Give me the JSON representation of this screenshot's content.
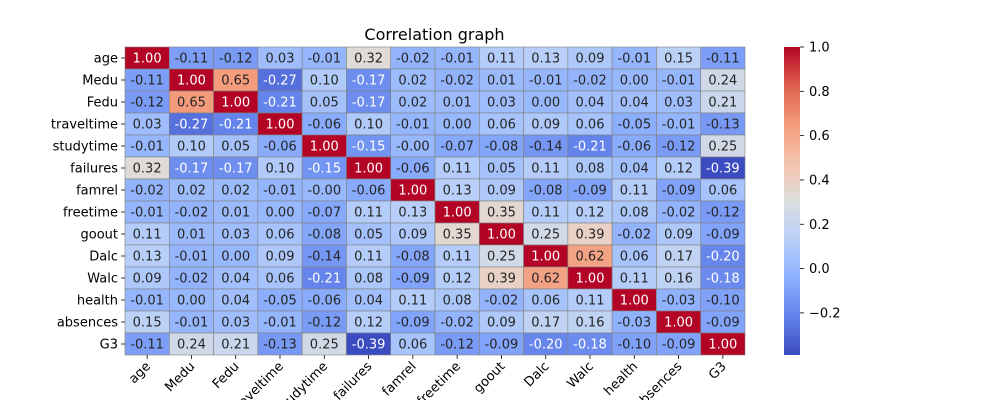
{
  "chart_data": {
    "type": "heatmap",
    "title": "Correlation graph",
    "rows": [
      "age",
      "Medu",
      "Fedu",
      "traveltime",
      "studytime",
      "failures",
      "famrel",
      "freetime",
      "goout",
      "Dalc",
      "Walc",
      "health",
      "absences",
      "G3"
    ],
    "columns": [
      "age",
      "Medu",
      "Fedu",
      "traveltime",
      "studytime",
      "failures",
      "famrel",
      "freetime",
      "goout",
      "Dalc",
      "Walc",
      "health",
      "absences",
      "G3"
    ],
    "values": [
      [
        1.0,
        -0.11,
        -0.12,
        0.03,
        -0.01,
        0.32,
        -0.02,
        -0.01,
        0.11,
        0.13,
        0.09,
        -0.01,
        0.15,
        -0.11
      ],
      [
        -0.11,
        1.0,
        0.65,
        -0.27,
        0.1,
        -0.17,
        0.02,
        -0.02,
        0.01,
        -0.01,
        -0.02,
        0.0,
        -0.01,
        0.24
      ],
      [
        -0.12,
        0.65,
        1.0,
        -0.21,
        0.05,
        -0.17,
        0.02,
        0.01,
        0.03,
        0.0,
        0.04,
        0.04,
        0.03,
        0.21
      ],
      [
        0.03,
        -0.27,
        -0.21,
        1.0,
        -0.06,
        0.1,
        -0.01,
        0.0,
        0.06,
        0.09,
        0.06,
        -0.05,
        -0.01,
        -0.13
      ],
      [
        -0.01,
        0.1,
        0.05,
        -0.06,
        1.0,
        -0.15,
        -0.0,
        -0.07,
        -0.08,
        -0.14,
        -0.21,
        -0.06,
        -0.12,
        0.25
      ],
      [
        0.32,
        -0.17,
        -0.17,
        0.1,
        -0.15,
        1.0,
        -0.06,
        0.11,
        0.05,
        0.11,
        0.08,
        0.04,
        0.12,
        -0.39
      ],
      [
        -0.02,
        0.02,
        0.02,
        -0.01,
        -0.0,
        -0.06,
        1.0,
        0.13,
        0.09,
        -0.08,
        -0.09,
        0.11,
        -0.09,
        0.06
      ],
      [
        -0.01,
        -0.02,
        0.01,
        0.0,
        -0.07,
        0.11,
        0.13,
        1.0,
        0.35,
        0.11,
        0.12,
        0.08,
        -0.02,
        -0.12
      ],
      [
        0.11,
        0.01,
        0.03,
        0.06,
        -0.08,
        0.05,
        0.09,
        0.35,
        1.0,
        0.25,
        0.39,
        -0.02,
        0.09,
        -0.09
      ],
      [
        0.13,
        -0.01,
        0.0,
        0.09,
        -0.14,
        0.11,
        -0.08,
        0.11,
        0.25,
        1.0,
        0.62,
        0.06,
        0.17,
        -0.2
      ],
      [
        0.09,
        -0.02,
        0.04,
        0.06,
        -0.21,
        0.08,
        -0.09,
        0.12,
        0.39,
        0.62,
        1.0,
        0.11,
        0.16,
        -0.18
      ],
      [
        -0.01,
        0.0,
        0.04,
        -0.05,
        -0.06,
        0.04,
        0.11,
        0.08,
        -0.02,
        0.06,
        0.11,
        1.0,
        -0.03,
        -0.1
      ],
      [
        0.15,
        -0.01,
        0.03,
        -0.01,
        -0.12,
        0.12,
        -0.09,
        -0.02,
        0.09,
        0.17,
        0.16,
        -0.03,
        1.0,
        -0.09
      ],
      [
        -0.11,
        0.24,
        0.21,
        -0.13,
        0.25,
        -0.39,
        0.06,
        -0.12,
        -0.09,
        -0.2,
        -0.18,
        -0.1,
        -0.09,
        1.0
      ]
    ],
    "colormap": "coolwarm",
    "vmin": -0.39,
    "vmax": 1.0,
    "colorbar_ticks": [
      "1.0",
      "0.8",
      "0.6",
      "0.4",
      "0.2",
      "0.0",
      "−0.2"
    ],
    "colorbar_tick_values": [
      1.0,
      0.8,
      0.6,
      0.4,
      0.2,
      0.0,
      -0.2
    ],
    "annotations_format": "0.00",
    "xlabel": "",
    "ylabel": "",
    "cell_border_color": "#808080"
  }
}
